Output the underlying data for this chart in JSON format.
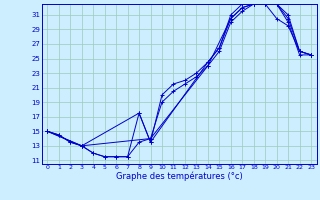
{
  "xlabel": "Graphe des températures (°c)",
  "background_color": "#cceeff",
  "grid_color": "#99ccbb",
  "line_color": "#0000cc",
  "xlim": [
    -0.5,
    23.5
  ],
  "ylim": [
    10.5,
    32.5
  ],
  "xticks": [
    0,
    1,
    2,
    3,
    4,
    5,
    6,
    7,
    8,
    9,
    10,
    11,
    12,
    13,
    14,
    15,
    16,
    17,
    18,
    19,
    20,
    21,
    22,
    23
  ],
  "yticks": [
    11,
    13,
    15,
    17,
    19,
    21,
    23,
    25,
    27,
    29,
    31
  ],
  "curve1_x": [
    0,
    1,
    2,
    3,
    4,
    5,
    6,
    7,
    8,
    9,
    10,
    11,
    12,
    13,
    14,
    15,
    16,
    17,
    18,
    19,
    20,
    21,
    22,
    23
  ],
  "curve1_y": [
    15.0,
    14.5,
    13.5,
    13.0,
    12.0,
    11.5,
    11.5,
    11.5,
    17.5,
    13.5,
    20.0,
    21.5,
    22.0,
    23.0,
    24.5,
    26.5,
    30.5,
    32.0,
    32.5,
    32.5,
    32.5,
    31.0,
    26.0,
    25.5
  ],
  "curve2_x": [
    0,
    1,
    2,
    3,
    4,
    5,
    6,
    7,
    8,
    9,
    10,
    11,
    12,
    13,
    14,
    15,
    16,
    17,
    18,
    19,
    20,
    21,
    22,
    23
  ],
  "curve2_y": [
    15.0,
    14.5,
    13.5,
    13.0,
    12.0,
    11.5,
    11.5,
    11.5,
    13.5,
    14.0,
    19.0,
    20.5,
    21.5,
    22.5,
    24.0,
    26.0,
    30.0,
    31.5,
    32.5,
    32.5,
    30.5,
    29.5,
    26.0,
    25.5
  ],
  "curve3_x": [
    0,
    3,
    8,
    9,
    14,
    15,
    16,
    17,
    18,
    19,
    20,
    21,
    22,
    23
  ],
  "curve3_y": [
    15.0,
    13.0,
    17.5,
    13.5,
    24.5,
    26.5,
    31.0,
    32.5,
    32.5,
    32.5,
    32.5,
    30.5,
    26.0,
    25.5
  ],
  "curve4_x": [
    0,
    3,
    9,
    14,
    16,
    17,
    18,
    19,
    20,
    21,
    22,
    23
  ],
  "curve4_y": [
    15.0,
    13.0,
    14.0,
    24.0,
    30.5,
    32.0,
    32.5,
    32.5,
    32.5,
    30.0,
    25.5,
    25.5
  ]
}
